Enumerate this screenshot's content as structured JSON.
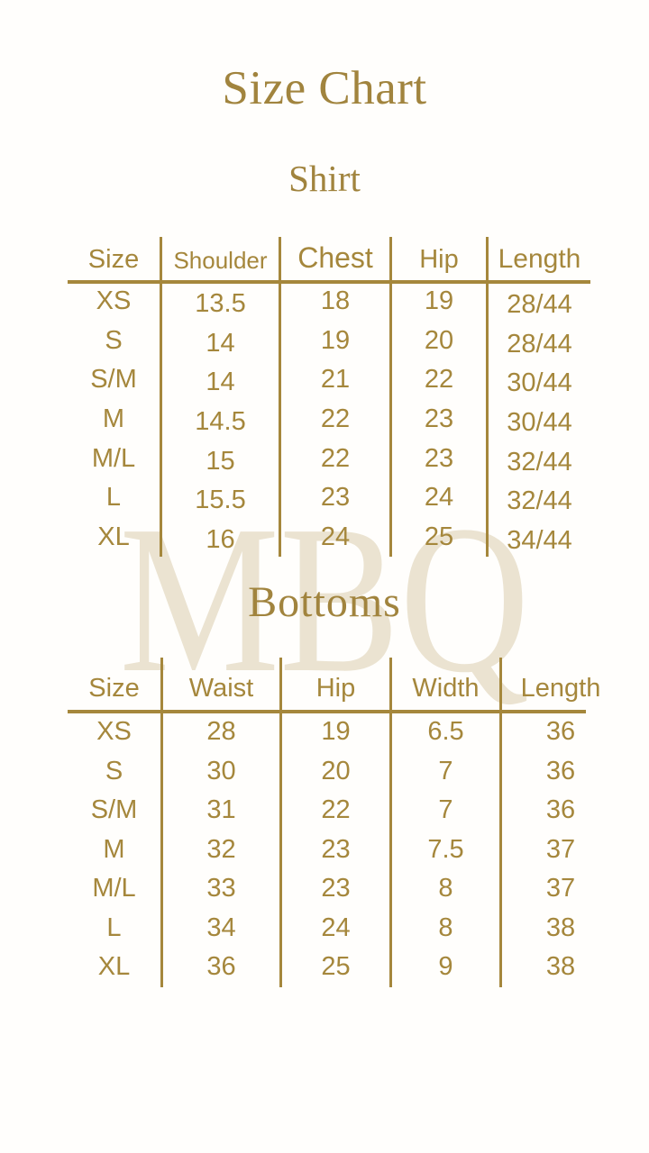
{
  "page": {
    "title": "Size Chart",
    "watermark": "MBQ",
    "background_color": "#fffefc",
    "accent_color": "#a5873c",
    "watermark_color": "#ebe3d1"
  },
  "shirt_table": {
    "title": "Shirt",
    "columns": [
      "Size",
      "Shoulder",
      "Chest",
      "Hip",
      "Length"
    ],
    "rows": [
      [
        "XS",
        "13.5",
        "18",
        "19",
        "28/44"
      ],
      [
        "S",
        "14",
        "19",
        "20",
        "28/44"
      ],
      [
        "S/M",
        "14",
        "21",
        "22",
        "30/44"
      ],
      [
        "M",
        "14.5",
        "22",
        "23",
        "30/44"
      ],
      [
        "M/L",
        "15",
        "22",
        "23",
        "32/44"
      ],
      [
        "L",
        "15.5",
        "23",
        "24",
        "32/44"
      ],
      [
        "XL",
        "16",
        "24",
        "25",
        "34/44"
      ]
    ]
  },
  "bottoms_table": {
    "title": "Bottoms",
    "columns": [
      "Size",
      "Waist",
      "Hip",
      "Width",
      "Length"
    ],
    "rows": [
      [
        "XS",
        "28",
        "19",
        "6.5",
        "36"
      ],
      [
        "S",
        "30",
        "20",
        "7",
        "36"
      ],
      [
        "S/M",
        "31",
        "22",
        "7",
        "36"
      ],
      [
        "M",
        "32",
        "23",
        "7.5",
        "37"
      ],
      [
        "M/L",
        "33",
        "23",
        "8",
        "37"
      ],
      [
        "L",
        "34",
        "24",
        "8",
        "38"
      ],
      [
        "XL",
        "36",
        "25",
        "9",
        "38"
      ]
    ]
  }
}
